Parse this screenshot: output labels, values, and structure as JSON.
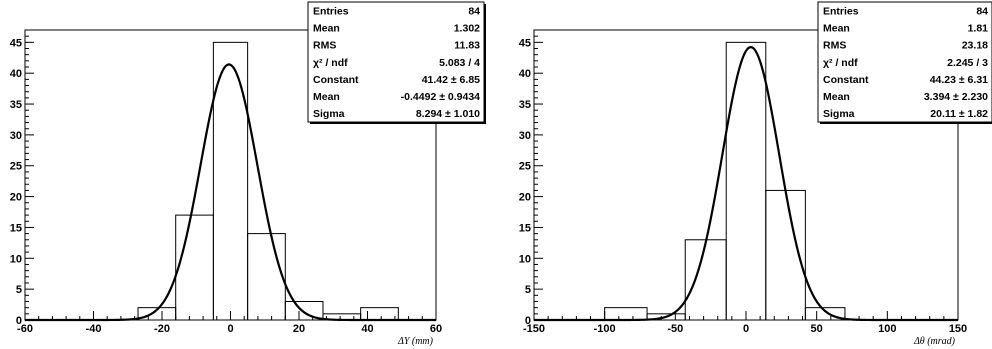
{
  "chart_data": [
    {
      "type": "histogram",
      "xlabel": "ΔY (mm)",
      "xlim": [
        -60,
        60
      ],
      "ylim": [
        0,
        47
      ],
      "x_ticks": [
        -60,
        -40,
        -20,
        0,
        20,
        40,
        60
      ],
      "y_ticks": [
        5,
        10,
        15,
        20,
        25,
        30,
        35,
        40,
        45
      ],
      "bins": [
        {
          "x0": -27,
          "x1": -16,
          "y": 2
        },
        {
          "x0": -16,
          "x1": -5,
          "y": 17
        },
        {
          "x0": -5,
          "x1": 5,
          "y": 45
        },
        {
          "x0": 5,
          "x1": 16,
          "y": 14
        },
        {
          "x0": 16,
          "x1": 27,
          "y": 3
        },
        {
          "x0": 27,
          "x1": 38,
          "y": 1
        },
        {
          "x0": 38,
          "x1": 49,
          "y": 2
        }
      ],
      "fit": {
        "constant": 41.42,
        "mean": -0.4492,
        "sigma": 8.294
      },
      "stats": [
        {
          "label": "Entries",
          "value": "84"
        },
        {
          "label": "Mean",
          "value": "1.302"
        },
        {
          "label": "RMS",
          "value": "11.83"
        },
        {
          "label": "χ² / ndf",
          "value": "5.083 / 4"
        },
        {
          "label": "Constant",
          "value": "41.42 ± 6.85"
        },
        {
          "label": "Mean",
          "value": "-0.4492 ± 0.9434"
        },
        {
          "label": "Sigma",
          "value": "8.294 ± 1.010"
        }
      ]
    },
    {
      "type": "histogram",
      "xlabel": "Δθ (mrad)",
      "xlim": [
        -150,
        150
      ],
      "ylim": [
        0,
        47
      ],
      "x_ticks": [
        -150,
        -100,
        -50,
        0,
        50,
        100,
        150
      ],
      "y_ticks": [
        5,
        10,
        15,
        20,
        25,
        30,
        35,
        40,
        45
      ],
      "bins": [
        {
          "x0": -100,
          "x1": -70,
          "y": 2
        },
        {
          "x0": -70,
          "x1": -43,
          "y": 1
        },
        {
          "x0": -43,
          "x1": -14,
          "y": 13
        },
        {
          "x0": -14,
          "x1": 14,
          "y": 45
        },
        {
          "x0": 14,
          "x1": 42,
          "y": 21
        },
        {
          "x0": 42,
          "x1": 70,
          "y": 2
        }
      ],
      "fit": {
        "constant": 44.23,
        "mean": 3.394,
        "sigma": 20.11
      },
      "stats": [
        {
          "label": "Entries",
          "value": "84"
        },
        {
          "label": "Mean",
          "value": "1.81"
        },
        {
          "label": "RMS",
          "value": "23.18"
        },
        {
          "label": "χ² / ndf",
          "value": "2.245 / 3"
        },
        {
          "label": "Constant",
          "value": "44.23 ± 6.31"
        },
        {
          "label": "Mean",
          "value": "3.394 ± 2.230"
        },
        {
          "label": "Sigma",
          "value": "20.11 ± 1.82"
        }
      ]
    }
  ]
}
